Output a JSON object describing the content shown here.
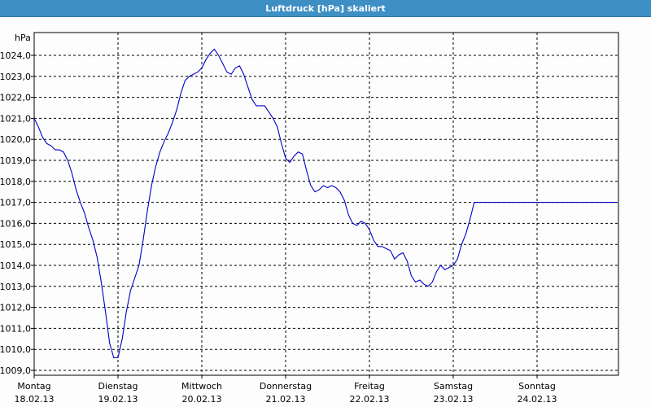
{
  "window": {
    "title": "Luftdruck [hPa] skaliert"
  },
  "chart_data": {
    "type": "line",
    "title": "Luftdruck [hPa] skaliert",
    "ylabel": "hPa",
    "ylim": [
      1008.8,
      1025.0
    ],
    "yticks": [
      1009.0,
      1010.0,
      1011.0,
      1012.0,
      1013.0,
      1014.0,
      1015.0,
      1016.0,
      1017.0,
      1018.0,
      1019.0,
      1020.0,
      1021.0,
      1022.0,
      1023.0,
      1024.0
    ],
    "ytick_labels": [
      "1009,0",
      "1010,0",
      "1011,0",
      "1012,0",
      "1013,0",
      "1014,0",
      "1015,0",
      "1016,0",
      "1017,0",
      "1018,0",
      "1019,0",
      "1020,0",
      "1021,0",
      "1022,0",
      "1023,0",
      "1024,0"
    ],
    "xlim": [
      0,
      7.05
    ],
    "x_days": [
      {
        "weekday": "Montag",
        "date": "18.02.13"
      },
      {
        "weekday": "Dienstag",
        "date": "19.02.13"
      },
      {
        "weekday": "Mittwoch",
        "date": "20.02.13"
      },
      {
        "weekday": "Donnerstag",
        "date": "21.02.13"
      },
      {
        "weekday": "Freitag",
        "date": "22.02.13"
      },
      {
        "weekday": "Samstag",
        "date": "23.02.13"
      },
      {
        "weekday": "Sonntag",
        "date": "24.02.13"
      }
    ],
    "grid": true,
    "line_color": "#0000c8",
    "series": [
      {
        "x": [
          0.0,
          0.05,
          0.1,
          0.15,
          0.2,
          0.25,
          0.3,
          0.35,
          0.4,
          0.45,
          0.5,
          0.55,
          0.6,
          0.65,
          0.7,
          0.75,
          0.8,
          0.85,
          0.9,
          0.95,
          1.0,
          1.05,
          1.1,
          1.15,
          1.2,
          1.25,
          1.3,
          1.35,
          1.4,
          1.45,
          1.5,
          1.55,
          1.6,
          1.65,
          1.7,
          1.75,
          1.8,
          1.85,
          1.9,
          1.95,
          2.0,
          2.05,
          2.1,
          2.15,
          2.2,
          2.25,
          2.3,
          2.35,
          2.4,
          2.45,
          2.5,
          2.55,
          2.6,
          2.65,
          2.7,
          2.75,
          2.8,
          2.85,
          2.9,
          2.95,
          3.0,
          3.05,
          3.1,
          3.15,
          3.2,
          3.25,
          3.3,
          3.35,
          3.4,
          3.45,
          3.5,
          3.55,
          3.6,
          3.65,
          3.7,
          3.75,
          3.8,
          3.85,
          3.9,
          3.95,
          4.0,
          4.05,
          4.1,
          4.15,
          4.2,
          4.25,
          4.3,
          4.35,
          4.4,
          4.45,
          4.5,
          4.55,
          4.6,
          4.65,
          4.7,
          4.75,
          4.8,
          4.85,
          4.9,
          4.95,
          5.0,
          5.05,
          5.1,
          5.15,
          5.2,
          5.25,
          5.3,
          5.35,
          5.4,
          5.45,
          5.5,
          5.55,
          5.6,
          5.65,
          5.7,
          5.75,
          5.8,
          5.85,
          5.9,
          5.95,
          6.0,
          6.05,
          6.1,
          6.15,
          6.2,
          6.25,
          6.3,
          6.35,
          6.4,
          6.45,
          6.5,
          6.55,
          6.6,
          6.65,
          6.7,
          6.75,
          6.8,
          6.85,
          6.9,
          6.95,
          7.0,
          7.05
        ],
        "y": [
          1021.0,
          1020.6,
          1020.1,
          1019.8,
          1019.7,
          1019.5,
          1019.5,
          1019.4,
          1019.0,
          1018.4,
          1017.6,
          1017.0,
          1016.5,
          1015.8,
          1015.2,
          1014.4,
          1013.2,
          1011.8,
          1010.3,
          1009.6,
          1009.6,
          1010.5,
          1011.8,
          1012.8,
          1013.4,
          1014.0,
          1015.2,
          1016.6,
          1017.8,
          1018.7,
          1019.4,
          1019.9,
          1020.3,
          1020.8,
          1021.4,
          1022.2,
          1022.8,
          1023.0,
          1023.1,
          1023.2,
          1023.4,
          1023.8,
          1024.1,
          1024.3,
          1024.0,
          1023.6,
          1023.2,
          1023.1,
          1023.4,
          1023.5,
          1023.1,
          1022.5,
          1021.9,
          1021.6,
          1021.6,
          1021.6,
          1021.3,
          1021.0,
          1020.6,
          1019.8,
          1019.1,
          1018.9,
          1019.2,
          1019.4,
          1019.3,
          1018.5,
          1017.8,
          1017.5,
          1017.6,
          1017.8,
          1017.7,
          1017.8,
          1017.7,
          1017.5,
          1017.1,
          1016.4,
          1016.0,
          1015.9,
          1016.1,
          1016.0,
          1015.7,
          1015.2,
          1014.9,
          1014.9,
          1014.8,
          1014.7,
          1014.3,
          1014.5,
          1014.6,
          1014.2,
          1013.5,
          1013.2,
          1013.3,
          1013.1,
          1013.0,
          1013.2,
          1013.7,
          1014.0,
          1013.8,
          1013.9,
          1014.0,
          1014.3,
          1015.0,
          1015.5,
          1016.2,
          1017.0,
          1017.0,
          1017.0,
          1017.0,
          1017.0,
          1017.0,
          1017.0,
          1017.0,
          1017.0,
          1017.0,
          1017.0,
          1017.0,
          1017.0,
          1017.0,
          1017.0,
          1017.0,
          1017.0,
          1017.0,
          1017.0,
          1017.0,
          1017.0,
          1017.0,
          1017.0,
          1017.0,
          1017.0,
          1017.0,
          1017.0,
          1017.0,
          1017.0,
          1017.0,
          1017.0,
          1017.0,
          1017.0,
          1017.0,
          1017.0,
          1017.0,
          1017.0
        ]
      }
    ]
  }
}
